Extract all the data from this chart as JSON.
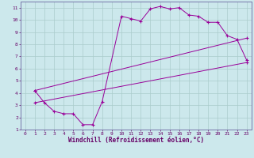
{
  "bg_color": "#cce8ec",
  "line_color": "#990099",
  "grid_color": "#aacccc",
  "xlabel": "Windchill (Refroidissement éolien,°C)",
  "xlim": [
    -0.5,
    23.5
  ],
  "ylim": [
    1,
    11.5
  ],
  "xticks": [
    0,
    1,
    2,
    3,
    4,
    5,
    6,
    7,
    8,
    9,
    10,
    11,
    12,
    13,
    14,
    15,
    16,
    17,
    18,
    19,
    20,
    21,
    22,
    23
  ],
  "yticks": [
    1,
    2,
    3,
    4,
    5,
    6,
    7,
    8,
    9,
    10,
    11
  ],
  "series": [
    {
      "x": [
        1,
        2,
        3,
        4,
        5,
        6,
        7,
        8,
        10,
        11,
        12,
        13,
        14,
        15,
        16,
        17,
        18,
        19,
        20,
        21,
        22,
        23
      ],
      "y": [
        4.2,
        3.2,
        2.5,
        2.3,
        2.3,
        1.4,
        1.4,
        3.3,
        10.3,
        10.1,
        9.9,
        10.9,
        11.1,
        10.9,
        11.0,
        10.4,
        10.3,
        9.8,
        9.8,
        8.7,
        8.4,
        6.7
      ]
    },
    {
      "x": [
        1,
        23
      ],
      "y": [
        3.2,
        6.5
      ]
    },
    {
      "x": [
        1,
        23
      ],
      "y": [
        4.2,
        8.5
      ]
    }
  ]
}
